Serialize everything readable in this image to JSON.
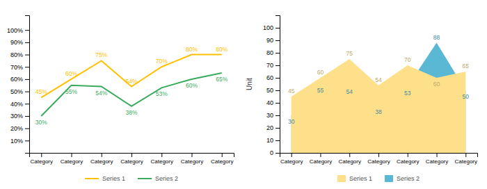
{
  "chart_data": [
    {
      "type": "line",
      "categories": [
        "Category",
        "Category",
        "Category",
        "Category",
        "Category",
        "Category",
        "Category"
      ],
      "series": [
        {
          "name": "Series 1",
          "color": "#FFC000",
          "values": [
            45,
            60,
            75,
            54,
            70,
            80,
            80
          ],
          "value_labels": [
            "45%",
            "60%",
            "75%",
            "54%",
            "70%",
            "80%",
            "80%"
          ]
        },
        {
          "name": "Series 2",
          "color": "#3AAA5C",
          "values": [
            30,
            55,
            54,
            38,
            53,
            60,
            65
          ],
          "value_labels": [
            "30%",
            "55%",
            "54%",
            "38%",
            "53%",
            "60%",
            "65%"
          ]
        }
      ],
      "ylim": [
        0,
        112
      ],
      "yticks": [
        {
          "value": 10,
          "label": "10%"
        },
        {
          "value": 20,
          "label": "20%"
        },
        {
          "value": 30,
          "label": "30%"
        },
        {
          "value": 40,
          "label": "40%"
        },
        {
          "value": 50,
          "label": "50%"
        },
        {
          "value": 60,
          "label": "60%"
        },
        {
          "value": 70,
          "label": "70%"
        },
        {
          "value": 80,
          "label": "80%"
        },
        {
          "value": 90,
          "label": "90%"
        },
        {
          "value": 100,
          "label": "100%"
        }
      ],
      "data_labels": true,
      "legend": "bottom"
    },
    {
      "type": "area",
      "ylabel": "Unit",
      "categories": [
        "Category",
        "Category",
        "Category",
        "Category",
        "Category",
        "Category",
        "Category"
      ],
      "series": [
        {
          "name": "Series 1",
          "color": "#FFE08A",
          "values": [
            45,
            60,
            75,
            54,
            70,
            60,
            65
          ]
        },
        {
          "name": "Series 2",
          "color": "#5BB8D4",
          "values": [
            30,
            55,
            54,
            38,
            53,
            88,
            50
          ]
        }
      ],
      "ylim": [
        0,
        110
      ],
      "yticks": [
        0,
        10,
        20,
        30,
        40,
        50,
        60,
        70,
        80,
        90,
        100
      ],
      "data_labels": true,
      "legend": "bottom"
    }
  ]
}
